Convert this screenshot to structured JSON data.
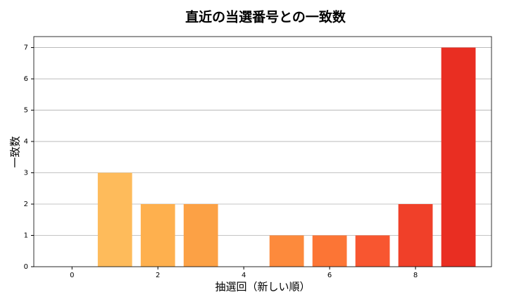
{
  "chart_data": {
    "type": "bar",
    "title": "直近の当選番号との一致数",
    "x_label": "抽選回（新しい順）",
    "y_label": "一致数",
    "x": [
      0,
      1,
      2,
      3,
      4,
      5,
      6,
      7,
      8,
      9
    ],
    "values": [
      0,
      3,
      2,
      2,
      0,
      1,
      1,
      1,
      2,
      7
    ],
    "colors": [
      "#fec965",
      "#febb5b",
      "#feb04e",
      "#fca145",
      "#fd9640",
      "#fd8a3c",
      "#fc7535",
      "#f85630",
      "#f04029",
      "#e92e22"
    ],
    "xlim": [
      -0.89,
      9.77
    ],
    "xticks": [
      0,
      2,
      4,
      6,
      8
    ],
    "ylim": [
      0,
      7.35
    ],
    "yticks": [
      0,
      1,
      2,
      3,
      4,
      5,
      6,
      7
    ],
    "grid": true
  }
}
